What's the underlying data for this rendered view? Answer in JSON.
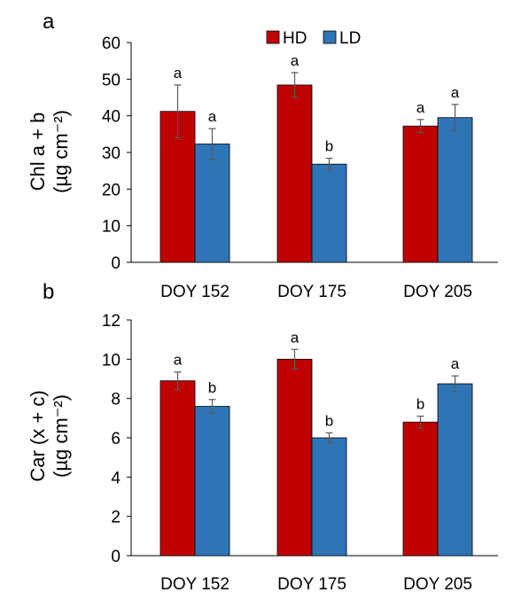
{
  "legend": [
    "HD",
    "LD"
  ],
  "colors": {
    "HD": "#c00000",
    "LD": "#2e75b6",
    "axis": "#000000",
    "errorbar": "#595959"
  },
  "chart_data": [
    {
      "type": "bar",
      "panel_label": "a",
      "ylabel_line1": "Chl a + b",
      "ylabel_line2": "(µg cm⁻²)",
      "categories": [
        "DOY 152",
        "DOY 175",
        "DOY 205"
      ],
      "ylim": [
        0,
        60
      ],
      "yticks": [
        0,
        10,
        20,
        30,
        40,
        50,
        60
      ],
      "grid": false,
      "legend_position": "top",
      "series": [
        {
          "name": "HD",
          "values": [
            41.2,
            48.4,
            37.2
          ],
          "errors": [
            7.2,
            3.4,
            1.8
          ],
          "letters": [
            "a",
            "a",
            "a"
          ]
        },
        {
          "name": "LD",
          "values": [
            32.3,
            26.8,
            39.5
          ],
          "errors": [
            4.2,
            1.6,
            3.6
          ],
          "letters": [
            "a",
            "b",
            "a"
          ]
        }
      ]
    },
    {
      "type": "bar",
      "panel_label": "b",
      "ylabel_line1": "Car (x + c)",
      "ylabel_line2": "(µg cm⁻²)",
      "categories": [
        "DOY 152",
        "DOY 175",
        "DOY 205"
      ],
      "ylim": [
        0,
        12
      ],
      "yticks": [
        0,
        2,
        4,
        6,
        8,
        10,
        12
      ],
      "grid": false,
      "series": [
        {
          "name": "HD",
          "values": [
            8.9,
            10.0,
            6.8
          ],
          "errors": [
            0.45,
            0.5,
            0.3
          ],
          "letters": [
            "a",
            "a",
            "b"
          ]
        },
        {
          "name": "LD",
          "values": [
            7.6,
            6.0,
            8.75
          ],
          "errors": [
            0.35,
            0.25,
            0.4
          ],
          "letters": [
            "b",
            "b",
            "a"
          ]
        }
      ]
    }
  ]
}
